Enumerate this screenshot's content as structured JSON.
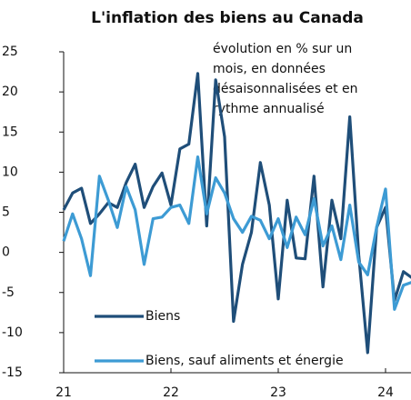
{
  "chart_data": {
    "type": "line",
    "title": "L'inflation des biens au Canada",
    "annotation": [
      "évolution en % sur un",
      "mois, en données",
      "désaisonnalisées et en",
      "rythme annualisé"
    ],
    "x": [
      2021.0,
      2021.0833,
      2021.1667,
      2021.25,
      2021.3333,
      2021.4167,
      2021.5,
      2021.5833,
      2021.6667,
      2021.75,
      2021.8333,
      2021.9167,
      2022.0,
      2022.0833,
      2022.1667,
      2022.25,
      2022.3333,
      2022.4167,
      2022.5,
      2022.5833,
      2022.6667,
      2022.75,
      2022.8333,
      2022.9167,
      2023.0,
      2023.0833,
      2023.1667,
      2023.25,
      2023.3333,
      2023.4167,
      2023.5,
      2023.5833,
      2023.6667,
      2023.75,
      2023.8333,
      2023.9167,
      2024.0,
      2024.0833,
      2024.1667,
      2024.25
    ],
    "series": [
      {
        "name": "Biens",
        "color": "#1f4e79",
        "values": [
          5.3,
          7.4,
          8.0,
          3.6,
          4.8,
          6.2,
          5.6,
          8.7,
          11.0,
          5.6,
          8.2,
          9.9,
          5.9,
          12.9,
          13.5,
          22.3,
          3.3,
          21.5,
          14.4,
          -8.6,
          -1.5,
          2.5,
          11.2,
          5.9,
          -5.8,
          6.5,
          -0.7,
          -0.8,
          9.5,
          -4.3,
          6.5,
          1.7,
          16.9,
          -0.3,
          -12.5,
          3.1,
          5.6,
          -6.0,
          -2.4,
          -3.2
        ]
      },
      {
        "name": "Biens, sauf aliments et énergie",
        "color": "#3d9bd4",
        "values": [
          1.4,
          4.8,
          1.7,
          -2.9,
          9.5,
          6.5,
          3.1,
          8.2,
          5.3,
          -1.5,
          4.2,
          4.4,
          5.6,
          5.9,
          3.6,
          11.9,
          4.8,
          9.3,
          7.4,
          4.2,
          2.5,
          4.5,
          4.0,
          1.7,
          4.2,
          0.6,
          4.4,
          2.2,
          6.7,
          0.8,
          3.3,
          -0.9,
          5.9,
          -1.2,
          -2.8,
          3.1,
          7.9,
          -7.1,
          -4.1,
          -3.7
        ]
      }
    ],
    "xlim": [
      2021,
      2024.27
    ],
    "xticks": [
      {
        "value": 2021,
        "label": "21"
      },
      {
        "value": 2022,
        "label": "22"
      },
      {
        "value": 2023,
        "label": "23"
      },
      {
        "value": 2024,
        "label": "24"
      }
    ],
    "ylim": [
      -15,
      25
    ],
    "yticks": [
      -15,
      -10,
      -5,
      0,
      5,
      10,
      15,
      20,
      25
    ]
  }
}
